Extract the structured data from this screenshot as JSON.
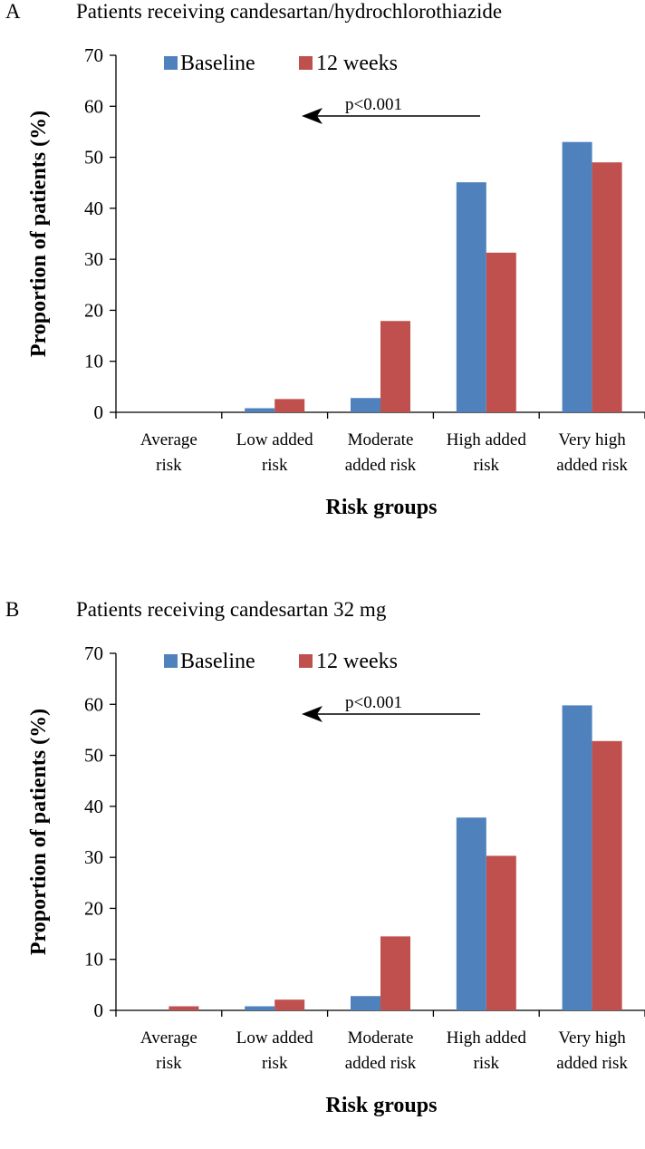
{
  "panels": [
    {
      "letter": "A",
      "title": "Patients receiving candesartan/hydrochlorothiazide"
    },
    {
      "letter": "B",
      "title": "Patients receiving candesartan 32 mg"
    }
  ],
  "chart_data": [
    {
      "type": "bar",
      "title": "Patients receiving candesartan/hydrochlorothiazide",
      "categories": [
        [
          "Average",
          "risk"
        ],
        [
          "Low added",
          "risk"
        ],
        [
          "Moderate",
          "added risk"
        ],
        [
          "High added",
          "risk"
        ],
        [
          "Very high",
          "added risk"
        ]
      ],
      "series": [
        {
          "name": "Baseline",
          "color": "#4F81BD",
          "values": [
            0,
            0.8,
            2.8,
            45.1,
            53.0
          ]
        },
        {
          "name": "12 weeks",
          "color": "#C0504D",
          "values": [
            0,
            2.6,
            17.9,
            31.3,
            49.0
          ]
        }
      ],
      "xlabel": "Risk groups",
      "ylabel": "Proportion of patients (%)",
      "ylim": [
        0,
        70
      ],
      "yticks": [
        0,
        10,
        20,
        30,
        40,
        50,
        60,
        70
      ],
      "legend": "top-left",
      "annotation": {
        "text": "p<0.001",
        "arrow": "right-to-left"
      }
    },
    {
      "type": "bar",
      "title": "Patients receiving candesartan 32 mg",
      "categories": [
        [
          "Average",
          "risk"
        ],
        [
          "Low added",
          "risk"
        ],
        [
          "Moderate",
          "added risk"
        ],
        [
          "High added",
          "risk"
        ],
        [
          "Very high",
          "added risk"
        ]
      ],
      "series": [
        {
          "name": "Baseline",
          "color": "#4F81BD",
          "values": [
            0,
            0.8,
            2.8,
            37.8,
            59.8
          ]
        },
        {
          "name": "12 weeks",
          "color": "#C0504D",
          "values": [
            0.8,
            2.1,
            14.5,
            30.3,
            52.8
          ]
        }
      ],
      "xlabel": "Risk groups",
      "ylabel": "Proportion of patients (%)",
      "ylim": [
        0,
        70
      ],
      "yticks": [
        0,
        10,
        20,
        30,
        40,
        50,
        60,
        70
      ],
      "legend": "top-left",
      "annotation": {
        "text": "p<0.001",
        "arrow": "right-to-left"
      }
    }
  ]
}
